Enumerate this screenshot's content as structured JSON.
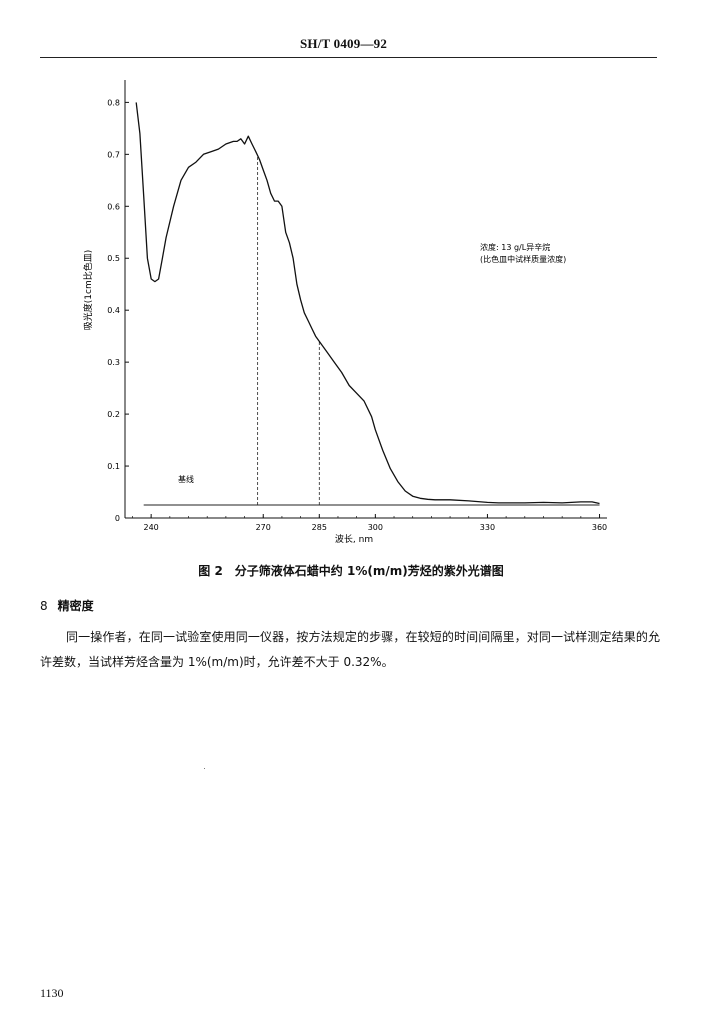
{
  "header": {
    "standard_code": "SH/T 0409—92"
  },
  "figure": {
    "caption": "图 2　分子筛液体石蜡中约 1%(m/m)芳烃的紫外光谱图"
  },
  "chart_data": {
    "type": "line",
    "xlabel": "波长, nm",
    "ylabel": "吸光度(1cm比色皿)",
    "xlim": [
      233,
      362
    ],
    "ylim": [
      0,
      0.82
    ],
    "x_ticks": [
      "240",
      "270",
      "285",
      "300",
      "330",
      "360"
    ],
    "y_ticks": [
      "0",
      "0.1",
      "0.2",
      "0.3",
      "0.4",
      "0.5",
      "0.6",
      "0.7",
      "0.8"
    ],
    "annotation_lines": [
      "浓度: 13 g/L异辛烷",
      "(比色皿中试样质量浓度)"
    ],
    "baseline_label": "基线",
    "baseline_value": 0.025,
    "reference_wavelengths": [
      268.5,
      285
    ],
    "series": [
      {
        "x": [
          236,
          237,
          238,
          239,
          240,
          241,
          242,
          243,
          244,
          246,
          248,
          250,
          252,
          254,
          256,
          258,
          260,
          262,
          263,
          264,
          265,
          266,
          267,
          268,
          269,
          270,
          271,
          272,
          273,
          274,
          275,
          276,
          277,
          278,
          279,
          280,
          281,
          282,
          283,
          284,
          285,
          287,
          289,
          291,
          293,
          295,
          297,
          299,
          300,
          302,
          304,
          306,
          308,
          310,
          312,
          314,
          316,
          320,
          325,
          330,
          333,
          340,
          345,
          350,
          355,
          358,
          360
        ],
        "y": [
          0.8,
          0.74,
          0.62,
          0.5,
          0.46,
          0.455,
          0.46,
          0.5,
          0.54,
          0.6,
          0.65,
          0.675,
          0.685,
          0.7,
          0.705,
          0.71,
          0.72,
          0.725,
          0.725,
          0.73,
          0.72,
          0.735,
          0.72,
          0.705,
          0.69,
          0.67,
          0.65,
          0.625,
          0.61,
          0.61,
          0.6,
          0.55,
          0.53,
          0.5,
          0.45,
          0.42,
          0.395,
          0.38,
          0.365,
          0.35,
          0.34,
          0.32,
          0.3,
          0.28,
          0.255,
          0.24,
          0.225,
          0.195,
          0.17,
          0.13,
          0.095,
          0.07,
          0.052,
          0.042,
          0.038,
          0.036,
          0.035,
          0.035,
          0.033,
          0.03,
          0.029,
          0.029,
          0.03,
          0.029,
          0.031,
          0.031,
          0.028
        ]
      }
    ]
  },
  "section": {
    "number": "8",
    "title": "精密度",
    "paragraph": "同一操作者，在同一试验室使用同一仪器，按方法规定的步骤，在较短的时间间隔里，对同一试样测定结果的允许差数，当试样芳烃含量为 1%(m/m)时，允许差不大于 0.32%。"
  },
  "page_number": "1130"
}
